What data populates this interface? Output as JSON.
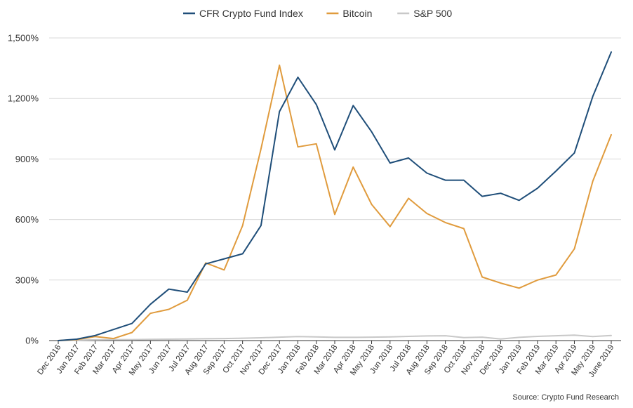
{
  "chart_data": {
    "type": "line",
    "title": "",
    "xlabel": "",
    "ylabel": "",
    "ylim": [
      0,
      1500
    ],
    "y_ticks": [
      {
        "value": 0,
        "label": "0%"
      },
      {
        "value": 300,
        "label": "300%"
      },
      {
        "value": 600,
        "label": "600%"
      },
      {
        "value": 900,
        "label": "900%"
      },
      {
        "value": 1200,
        "label": "1,200%"
      },
      {
        "value": 1500,
        "label": "1,500%"
      }
    ],
    "categories": [
      "Dec 2016",
      "Jan 2017",
      "Feb 2017",
      "Mar 2017",
      "Apr 2017",
      "May 2017",
      "Jun 2017",
      "Jul 2017",
      "Aug 2017",
      "Sep 2017",
      "Oct 2017",
      "Nov 2017",
      "Dec 2017",
      "Jan 2018",
      "Feb 2018",
      "Mar 2018",
      "Apr 2018",
      "May 2018",
      "Jun 2018",
      "Jul 2018",
      "Aug 2018",
      "Sep 2018",
      "Oct 2018",
      "Nov 2018",
      "Dec 2018",
      "Jan 2019",
      "Feb 2019",
      "Mar 2019",
      "Apr 2019",
      "May 2019",
      "June 2019"
    ],
    "series": [
      {
        "name": "CFR Crypto Fund Index",
        "color": "#1f4e79",
        "values": [
          0,
          7,
          25,
          55,
          85,
          180,
          255,
          240,
          380,
          405,
          430,
          570,
          1135,
          1305,
          1170,
          945,
          1165,
          1035,
          880,
          905,
          830,
          795,
          795,
          715,
          730,
          695,
          755,
          840,
          930,
          1210,
          1430
        ]
      },
      {
        "name": "Bitcoin",
        "color": "#e09b3d",
        "values": [
          0,
          5,
          20,
          10,
          40,
          135,
          155,
          200,
          385,
          350,
          570,
          950,
          1365,
          960,
          975,
          625,
          860,
          675,
          565,
          705,
          630,
          585,
          555,
          315,
          285,
          260,
          300,
          325,
          455,
          790,
          1020
        ]
      },
      {
        "name": "S&P 500",
        "color": "#c8c8c8",
        "values": [
          0,
          2,
          4,
          5,
          5,
          6,
          7,
          8,
          9,
          10,
          12,
          14,
          17,
          20,
          18,
          16,
          16,
          17,
          18,
          21,
          23,
          24,
          15,
          17,
          8,
          16,
          21,
          24,
          27,
          20,
          25
        ]
      }
    ],
    "legend": "top-center",
    "grid": true,
    "source": "Source: Crypto Fund Research"
  }
}
